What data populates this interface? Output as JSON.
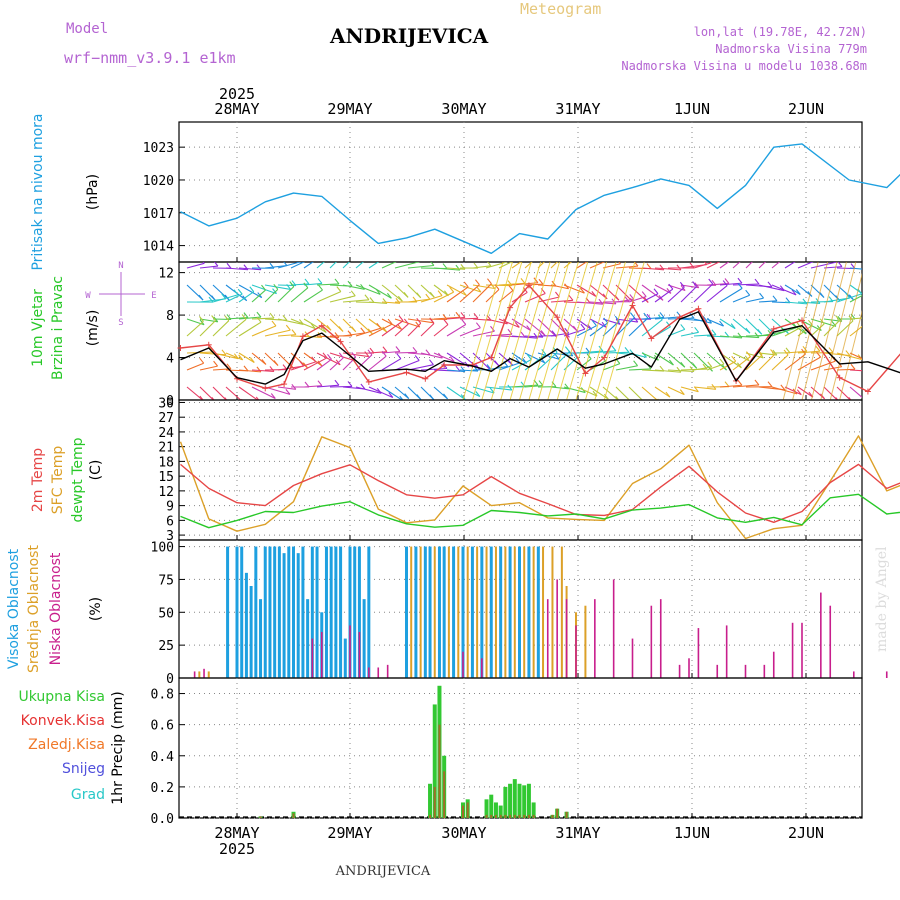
{
  "header": {
    "model_label": "Model",
    "model_name": "wrf−nmm_v3.9.1  e1km",
    "station": "ANDRIJEVICA",
    "meteogram": "Meteogram",
    "lonlat": "lon,lat (19.78E, 42.72N)",
    "elevation": "Nadmorska Visina 779m",
    "model_elevation": "Nadmorska Visina u modelu 1038.68m",
    "footer_station": "ANDRIJEVICA",
    "made_by": "made by Angel"
  },
  "colors": {
    "pressure": "#1ea0e0",
    "temp": "#e64646",
    "sfc": "#dca028",
    "dewpt": "#28c828",
    "high_cloud": "#1ea0e0",
    "mid_cloud": "#dca028",
    "low_cloud": "#c81e8c",
    "rain": "#32c832",
    "conv": "#e63232",
    "ice": "#f07828",
    "snow": "#5050dc",
    "graupel": "#28c8c8",
    "header_purple": "#b464d2",
    "meteogram_text": "#e6c87d"
  },
  "chart_data": {
    "type": "line",
    "x_ticks": [
      "28MAY",
      "29MAY",
      "30MAY",
      "31MAY",
      "1JUN",
      "2JUN"
    ],
    "year": "2025",
    "pressure": {
      "label": "Pritisak na nivou mora",
      "unit": "(hPa)",
      "ylim": [
        1012.5,
        1025.3
      ],
      "yticks": [
        1014,
        1017,
        1020,
        1023
      ],
      "x_hours": [
        0,
        6,
        12,
        18,
        24,
        30,
        36,
        42,
        48,
        54,
        60,
        66,
        72,
        78,
        84,
        90,
        96,
        102,
        108,
        114,
        120,
        126,
        132,
        142,
        150,
        156,
        162
      ],
      "values": [
        1017.1,
        1015.8,
        1016.5,
        1018.0,
        1018.8,
        1018.5,
        1016.3,
        1014.2,
        1014.7,
        1015.5,
        1014.4,
        1013.3,
        1015.1,
        1014.6,
        1017.3,
        1018.6,
        1019.3,
        1020.1,
        1019.5,
        1017.4,
        1019.5,
        1023.0,
        1023.3,
        1020.0,
        1019.3,
        1021.8,
        1018.3
      ]
    },
    "wind": {
      "label1": "10m Vjetar",
      "label2": "Brzina i Pravac",
      "unit": "(m/s)",
      "compass": [
        "N",
        "E",
        "W",
        "S"
      ],
      "ylim": [
        0,
        13
      ],
      "yticks": [
        0,
        4,
        8,
        12
      ],
      "x_hours": [
        0,
        6,
        12,
        18,
        22,
        26,
        30,
        34,
        40,
        48,
        52,
        56,
        62,
        66,
        70,
        74,
        80,
        86,
        90,
        96,
        100,
        106,
        110,
        118,
        126,
        132,
        140,
        146,
        154,
        160,
        164,
        168
      ],
      "speed": [
        3.8,
        4.9,
        2.1,
        1.5,
        2.4,
        5.6,
        6.3,
        4.9,
        2.7,
        2.9,
        2.7,
        3.7,
        3.2,
        2.7,
        3.9,
        3.1,
        4.8,
        3.0,
        3.4,
        4.4,
        3.1,
        7.6,
        8.3,
        1.8,
        6.4,
        7.0,
        3.4,
        3.6,
        2.4,
        3.0,
        2.4,
        2.6
      ],
      "gust": [
        4.9,
        5.2,
        2.0,
        1.1,
        1.5,
        6.0,
        7.0,
        5.5,
        1.7,
        2.6,
        2.0,
        3.3,
        3.3,
        4.0,
        8.7,
        10.8,
        7.8,
        2.5,
        4.0,
        8.9,
        5.8,
        7.8,
        8.6,
        1.8,
        6.7,
        7.5,
        2.1,
        0.8,
        4.9,
        0.9,
        2.1,
        2.3
      ]
    },
    "temperature": {
      "label1": "2m Temp",
      "label2": "SFC Temp",
      "label3": "dewpt Temp",
      "unit": "(C)",
      "ylim": [
        2,
        30.5
      ],
      "yticks": [
        3,
        6,
        9,
        12,
        15,
        18,
        21,
        24,
        27,
        30
      ],
      "x_hours": [
        0,
        6,
        12,
        18,
        24,
        30,
        36,
        42,
        48,
        54,
        60,
        66,
        72,
        78,
        84,
        90,
        96,
        102,
        108,
        114,
        120,
        126,
        132,
        138,
        144,
        150,
        156,
        162,
        168
      ],
      "t2m": [
        17.4,
        12.5,
        9.6,
        9.0,
        13.1,
        15.5,
        17.3,
        14.1,
        11.2,
        10.5,
        11.2,
        14.9,
        11.5,
        9.4,
        7.2,
        7.0,
        8.2,
        12.8,
        17.0,
        11.8,
        7.5,
        5.6,
        7.8,
        13.7,
        17.4,
        12.5,
        14.8,
        19.6,
        21.3
      ],
      "sfc": [
        22.0,
        6.3,
        3.8,
        5.2,
        9.8,
        23.0,
        20.8,
        8.3,
        5.5,
        6.1,
        13.0,
        9.0,
        9.6,
        6.5,
        6.2,
        6.0,
        13.5,
        16.5,
        21.3,
        9.6,
        2.3,
        4.3,
        5.0,
        14.0,
        23.2,
        12.0,
        14.3,
        22.7,
        29.8
      ],
      "dewpt": [
        6.8,
        4.5,
        6.0,
        7.8,
        7.6,
        8.9,
        9.8,
        7.1,
        5.3,
        4.6,
        5.0,
        8.0,
        7.6,
        6.9,
        7.3,
        6.3,
        8.1,
        8.5,
        9.2,
        6.5,
        5.6,
        6.6,
        5.1,
        10.6,
        11.3,
        7.3,
        8.0,
        6.2,
        12.1
      ]
    },
    "cloud": {
      "label1": "Visoka Oblacnost",
      "label2": "Srednja Oblacnost",
      "label3": "Niska Oblacnost",
      "unit": "(%)",
      "ylim": [
        0,
        105
      ],
      "yticks": [
        0,
        25,
        50,
        75,
        100
      ],
      "high": [
        {
          "x": 10,
          "v": 100
        },
        {
          "x": 12,
          "v": 100
        },
        {
          "x": 13,
          "v": 100
        },
        {
          "x": 14,
          "v": 80
        },
        {
          "x": 15,
          "v": 70
        },
        {
          "x": 16,
          "v": 100
        },
        {
          "x": 17,
          "v": 60
        },
        {
          "x": 18,
          "v": 100
        },
        {
          "x": 19,
          "v": 100
        },
        {
          "x": 20,
          "v": 100
        },
        {
          "x": 21,
          "v": 100
        },
        {
          "x": 22,
          "v": 95
        },
        {
          "x": 23,
          "v": 100
        },
        {
          "x": 24,
          "v": 100
        },
        {
          "x": 25,
          "v": 95
        },
        {
          "x": 26,
          "v": 100
        },
        {
          "x": 27,
          "v": 60
        },
        {
          "x": 28,
          "v": 100
        },
        {
          "x": 29,
          "v": 100
        },
        {
          "x": 30,
          "v": 50
        },
        {
          "x": 31,
          "v": 100
        },
        {
          "x": 32,
          "v": 100
        },
        {
          "x": 33,
          "v": 100
        },
        {
          "x": 34,
          "v": 100
        },
        {
          "x": 35,
          "v": 30
        },
        {
          "x": 36,
          "v": 100
        },
        {
          "x": 37,
          "v": 100
        },
        {
          "x": 38,
          "v": 100
        },
        {
          "x": 39,
          "v": 60
        },
        {
          "x": 40,
          "v": 100
        },
        {
          "x": 48,
          "v": 100
        },
        {
          "x": 50,
          "v": 100
        },
        {
          "x": 52,
          "v": 100
        },
        {
          "x": 53,
          "v": 100
        },
        {
          "x": 55,
          "v": 100
        },
        {
          "x": 56,
          "v": 100
        },
        {
          "x": 58,
          "v": 100
        },
        {
          "x": 60,
          "v": 100
        },
        {
          "x": 62,
          "v": 100
        },
        {
          "x": 64,
          "v": 100
        },
        {
          "x": 66,
          "v": 100
        },
        {
          "x": 68,
          "v": 100
        },
        {
          "x": 70,
          "v": 100
        },
        {
          "x": 72,
          "v": 100
        },
        {
          "x": 74,
          "v": 100
        },
        {
          "x": 76,
          "v": 100
        }
      ],
      "mid": [
        {
          "x": 49,
          "v": 100
        },
        {
          "x": 51,
          "v": 100
        },
        {
          "x": 54,
          "v": 100
        },
        {
          "x": 57,
          "v": 100
        },
        {
          "x": 59,
          "v": 100
        },
        {
          "x": 61,
          "v": 100
        },
        {
          "x": 63,
          "v": 100
        },
        {
          "x": 65,
          "v": 100
        },
        {
          "x": 67,
          "v": 100
        },
        {
          "x": 69,
          "v": 100
        },
        {
          "x": 71,
          "v": 100
        },
        {
          "x": 73,
          "v": 100
        },
        {
          "x": 75,
          "v": 100
        },
        {
          "x": 77,
          "v": 100
        },
        {
          "x": 79,
          "v": 100
        },
        {
          "x": 81,
          "v": 100
        },
        {
          "x": 82,
          "v": 70
        },
        {
          "x": 84,
          "v": 50
        },
        {
          "x": 86,
          "v": 55
        },
        {
          "x": 4,
          "v": 5
        },
        {
          "x": 6,
          "v": 5
        }
      ],
      "low": [
        {
          "x": 3,
          "v": 5
        },
        {
          "x": 5,
          "v": 7
        },
        {
          "x": 28,
          "v": 30
        },
        {
          "x": 30,
          "v": 35
        },
        {
          "x": 36,
          "v": 40
        },
        {
          "x": 38,
          "v": 35
        },
        {
          "x": 40,
          "v": 8
        },
        {
          "x": 42,
          "v": 8
        },
        {
          "x": 44,
          "v": 10
        },
        {
          "x": 60,
          "v": 20
        },
        {
          "x": 64,
          "v": 15
        },
        {
          "x": 78,
          "v": 60
        },
        {
          "x": 80,
          "v": 75
        },
        {
          "x": 82,
          "v": 60
        },
        {
          "x": 84,
          "v": 40
        },
        {
          "x": 88,
          "v": 60
        },
        {
          "x": 92,
          "v": 75
        },
        {
          "x": 96,
          "v": 30
        },
        {
          "x": 100,
          "v": 55
        },
        {
          "x": 102,
          "v": 60
        },
        {
          "x": 106,
          "v": 10
        },
        {
          "x": 108,
          "v": 15
        },
        {
          "x": 110,
          "v": 38
        },
        {
          "x": 114,
          "v": 10
        },
        {
          "x": 116,
          "v": 40
        },
        {
          "x": 120,
          "v": 10
        },
        {
          "x": 124,
          "v": 10
        },
        {
          "x": 126,
          "v": 20
        },
        {
          "x": 130,
          "v": 42
        },
        {
          "x": 132,
          "v": 42
        },
        {
          "x": 136,
          "v": 65
        },
        {
          "x": 138,
          "v": 55
        },
        {
          "x": 143,
          "v": 5
        },
        {
          "x": 150,
          "v": 5
        },
        {
          "x": 156,
          "v": 7
        },
        {
          "x": 162,
          "v": 8
        },
        {
          "x": 164,
          "v": 6
        },
        {
          "x": 170,
          "v": 3
        }
      ]
    },
    "precip": {
      "label1": "Ukupna Kisa",
      "label2": "Konvek.Kisa",
      "label3": "Zaledj.Kisa",
      "label4": "Snijeg",
      "label5": "Grad",
      "unit": "1hr Precip (mm)",
      "ylim": [
        0,
        0.9
      ],
      "yticks": [
        0,
        0.2,
        0.4,
        0.6,
        0.8
      ],
      "bars": [
        {
          "x": 17,
          "rain": 0.01,
          "conv": 0.01
        },
        {
          "x": 24,
          "rain": 0.04,
          "conv": 0.03
        },
        {
          "x": 53,
          "rain": 0.22,
          "conv": 0.02
        },
        {
          "x": 54,
          "rain": 0.73,
          "conv": 0.2
        },
        {
          "x": 55,
          "rain": 0.85,
          "conv": 0.6
        },
        {
          "x": 56,
          "rain": 0.4,
          "conv": 0.3
        },
        {
          "x": 60,
          "rain": 0.1,
          "conv": 0.08
        },
        {
          "x": 61,
          "rain": 0.12,
          "conv": 0.1
        },
        {
          "x": 65,
          "rain": 0.12,
          "conv": 0.02
        },
        {
          "x": 66,
          "rain": 0.15,
          "conv": 0.02
        },
        {
          "x": 67,
          "rain": 0.1,
          "conv": 0.02
        },
        {
          "x": 68,
          "rain": 0.08,
          "conv": 0.02
        },
        {
          "x": 69,
          "rain": 0.2,
          "conv": 0.02
        },
        {
          "x": 70,
          "rain": 0.22,
          "conv": 0.02
        },
        {
          "x": 71,
          "rain": 0.25,
          "conv": 0.02
        },
        {
          "x": 72,
          "rain": 0.22,
          "conv": 0.02
        },
        {
          "x": 73,
          "rain": 0.21,
          "conv": 0.02
        },
        {
          "x": 74,
          "rain": 0.22,
          "conv": 0.02
        },
        {
          "x": 75,
          "rain": 0.1,
          "conv": 0.02
        },
        {
          "x": 79,
          "rain": 0.02,
          "conv": 0.02
        },
        {
          "x": 80,
          "rain": 0.06,
          "conv": 0.06
        },
        {
          "x": 82,
          "rain": 0.04,
          "conv": 0.04
        }
      ]
    }
  }
}
